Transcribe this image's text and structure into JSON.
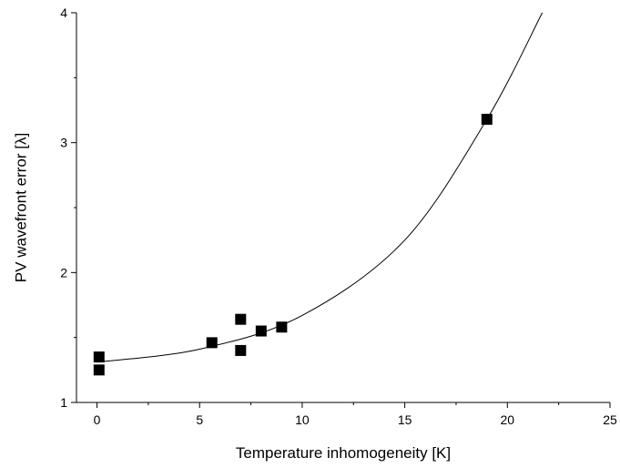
{
  "chart_data": {
    "type": "scatter",
    "xlabel": "Temperature inhomogeneity [K]",
    "ylabel": "PV wavefront error [λ]",
    "xlim": [
      -1,
      25
    ],
    "ylim": [
      1,
      4
    ],
    "x_ticks": [
      0,
      5,
      10,
      15,
      20,
      25
    ],
    "y_ticks": [
      1,
      2,
      3,
      4
    ],
    "grid": false,
    "series": [
      {
        "marker": "square",
        "color": "#000000",
        "points": [
          {
            "x": 0.1,
            "y": 1.25
          },
          {
            "x": 0.1,
            "y": 1.35
          },
          {
            "x": 5.6,
            "y": 1.46
          },
          {
            "x": 7.0,
            "y": 1.4
          },
          {
            "x": 7.0,
            "y": 1.64
          },
          {
            "x": 8.0,
            "y": 1.55
          },
          {
            "x": 9.0,
            "y": 1.58
          },
          {
            "x": 19.0,
            "y": 3.18
          }
        ]
      }
    ],
    "fit": {
      "type": "exponential",
      "color": "#000000",
      "x_range": [
        0,
        21.7
      ],
      "points": [
        {
          "x": 0,
          "y": 1.31
        },
        {
          "x": 5,
          "y": 1.41
        },
        {
          "x": 10,
          "y": 1.67
        },
        {
          "x": 15,
          "y": 2.25
        },
        {
          "x": 19,
          "y": 3.18
        },
        {
          "x": 21.7,
          "y": 4.0
        }
      ]
    }
  }
}
